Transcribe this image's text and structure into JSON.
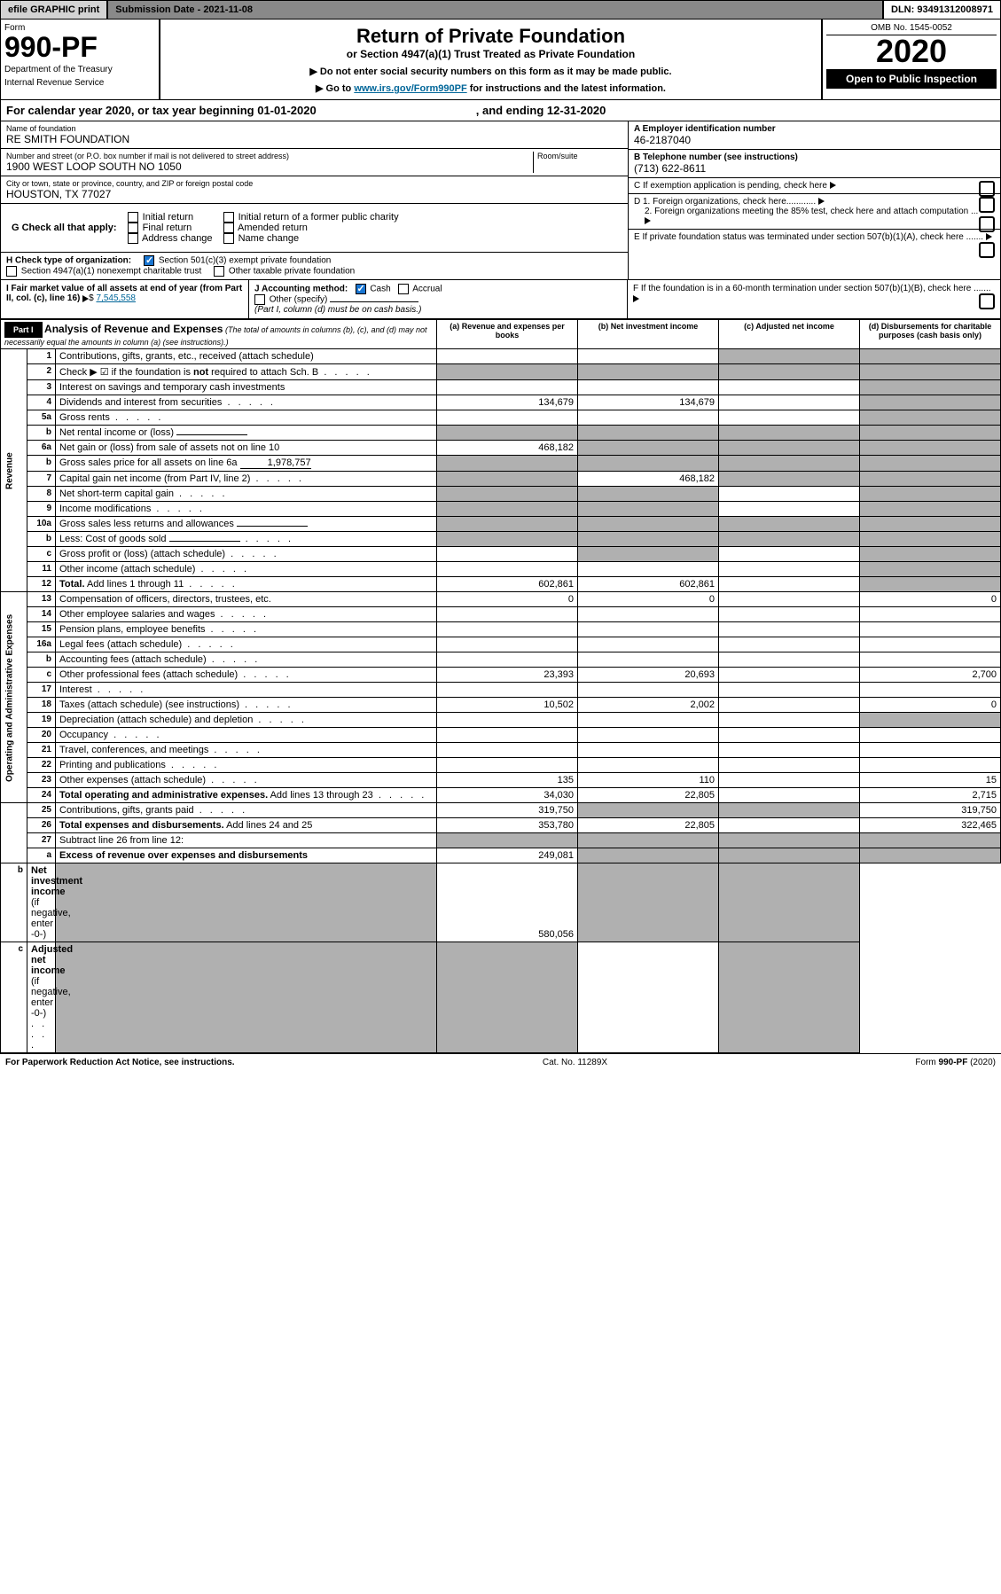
{
  "topbar": {
    "efile": "efile GRAPHIC print",
    "subdate_label": "Submission Date - 2021-11-08",
    "dln": "DLN: 93491312008971"
  },
  "header": {
    "form_label": "Form",
    "form_num": "990-PF",
    "dept1": "Department of the Treasury",
    "dept2": "Internal Revenue Service",
    "title": "Return of Private Foundation",
    "subtitle": "or Section 4947(a)(1) Trust Treated as Private Foundation",
    "notice1": "▶ Do not enter social security numbers on this form as it may be made public.",
    "notice2_pre": "▶ Go to ",
    "notice2_link": "www.irs.gov/Form990PF",
    "notice2_post": " for instructions and the latest information.",
    "omb": "OMB No. 1545-0052",
    "year": "2020",
    "inspect": "Open to Public Inspection"
  },
  "calendar": {
    "text": "For calendar year 2020, or tax year beginning 01-01-2020",
    "ending": ", and ending 12-31-2020"
  },
  "foundation": {
    "name_label": "Name of foundation",
    "name": "RE SMITH FOUNDATION",
    "addr_label": "Number and street (or P.O. box number if mail is not delivered to street address)",
    "addr": "1900 WEST LOOP SOUTH NO 1050",
    "room_label": "Room/suite",
    "city_label": "City or town, state or province, country, and ZIP or foreign postal code",
    "city": "HOUSTON, TX  77027",
    "ein_label": "A Employer identification number",
    "ein": "46-2187040",
    "phone_label": "B Telephone number (see instructions)",
    "phone": "(713) 622-8611",
    "c_label": "C If exemption application is pending, check here",
    "d1_label": "D 1. Foreign organizations, check here............",
    "d2_label": "2. Foreign organizations meeting the 85% test, check here and attach computation ...",
    "e_label": "E  If private foundation status was terminated under section 507(b)(1)(A), check here .......",
    "f_label": "F  If the foundation is in a 60-month termination under section 507(b)(1)(B), check here .......",
    "g_label": "G Check all that apply:",
    "g_opts": [
      "Initial return",
      "Final return",
      "Address change",
      "Initial return of a former public charity",
      "Amended return",
      "Name change"
    ],
    "h_label": "H Check type of organization:",
    "h1": "Section 501(c)(3) exempt private foundation",
    "h2": "Section 4947(a)(1) nonexempt charitable trust",
    "h3": "Other taxable private foundation",
    "i_label": "I Fair market value of all assets at end of year (from Part II, col. (c), line 16)",
    "i_amount": "7,545,558",
    "j_label": "J Accounting method:",
    "j_cash": "Cash",
    "j_accrual": "Accrual",
    "j_other": "Other (specify)",
    "j_note": "(Part I, column (d) must be on cash basis.)"
  },
  "part1": {
    "label": "Part I",
    "title": "Analysis of Revenue and Expenses",
    "subtitle": "(The total of amounts in columns (b), (c), and (d) may not necessarily equal the amounts in column (a) (see instructions).)",
    "col_a": "(a) Revenue and expenses per books",
    "col_b": "(b) Net investment income",
    "col_c": "(c) Adjusted net income",
    "col_d": "(d) Disbursements for charitable purposes (cash basis only)",
    "side_revenue": "Revenue",
    "side_expenses": "Operating and Administrative Expenses"
  },
  "rows": [
    {
      "n": "1",
      "desc": "Contributions, gifts, grants, etc., received (attach schedule)",
      "a": "",
      "b": "",
      "c": "grey",
      "d": "grey"
    },
    {
      "n": "2",
      "desc": "Check ▶ ☑ if the foundation is <b>not</b> required to attach Sch. B",
      "dots": true,
      "a": "grey",
      "b": "grey",
      "c": "grey",
      "d": "grey"
    },
    {
      "n": "3",
      "desc": "Interest on savings and temporary cash investments",
      "a": "",
      "b": "",
      "c": "",
      "d": "grey"
    },
    {
      "n": "4",
      "desc": "Dividends and interest from securities",
      "dots": true,
      "a": "134,679",
      "b": "134,679",
      "c": "",
      "d": "grey"
    },
    {
      "n": "5a",
      "desc": "Gross rents",
      "dots": true,
      "a": "",
      "b": "",
      "c": "",
      "d": "grey"
    },
    {
      "n": "b",
      "desc": "Net rental income or (loss)",
      "inline": "",
      "a": "grey",
      "b": "grey",
      "c": "grey",
      "d": "grey"
    },
    {
      "n": "6a",
      "desc": "Net gain or (loss) from sale of assets not on line 10",
      "a": "468,182",
      "b": "grey",
      "c": "grey",
      "d": "grey"
    },
    {
      "n": "b",
      "desc": "Gross sales price for all assets on line 6a",
      "inline": "1,978,757",
      "a": "grey",
      "b": "grey",
      "c": "grey",
      "d": "grey"
    },
    {
      "n": "7",
      "desc": "Capital gain net income (from Part IV, line 2)",
      "dots": true,
      "a": "grey",
      "b": "468,182",
      "c": "grey",
      "d": "grey"
    },
    {
      "n": "8",
      "desc": "Net short-term capital gain",
      "dots": true,
      "a": "grey",
      "b": "grey",
      "c": "",
      "d": "grey"
    },
    {
      "n": "9",
      "desc": "Income modifications",
      "dots": true,
      "a": "grey",
      "b": "grey",
      "c": "",
      "d": "grey"
    },
    {
      "n": "10a",
      "desc": "Gross sales less returns and allowances",
      "inline": "",
      "a": "grey",
      "b": "grey",
      "c": "grey",
      "d": "grey"
    },
    {
      "n": "b",
      "desc": "Less: Cost of goods sold",
      "dots": true,
      "inline": "",
      "a": "grey",
      "b": "grey",
      "c": "grey",
      "d": "grey"
    },
    {
      "n": "c",
      "desc": "Gross profit or (loss) (attach schedule)",
      "dots": true,
      "a": "",
      "b": "grey",
      "c": "",
      "d": "grey"
    },
    {
      "n": "11",
      "desc": "Other income (attach schedule)",
      "dots": true,
      "a": "",
      "b": "",
      "c": "",
      "d": "grey"
    },
    {
      "n": "12",
      "desc": "<b>Total.</b> Add lines 1 through 11",
      "dots": true,
      "a": "602,861",
      "b": "602,861",
      "c": "",
      "d": "grey"
    },
    {
      "n": "13",
      "desc": "Compensation of officers, directors, trustees, etc.",
      "a": "0",
      "b": "0",
      "c": "",
      "d": "0",
      "section": "exp"
    },
    {
      "n": "14",
      "desc": "Other employee salaries and wages",
      "dots": true,
      "a": "",
      "b": "",
      "c": "",
      "d": ""
    },
    {
      "n": "15",
      "desc": "Pension plans, employee benefits",
      "dots": true,
      "a": "",
      "b": "",
      "c": "",
      "d": ""
    },
    {
      "n": "16a",
      "desc": "Legal fees (attach schedule)",
      "dots": true,
      "a": "",
      "b": "",
      "c": "",
      "d": ""
    },
    {
      "n": "b",
      "desc": "Accounting fees (attach schedule)",
      "dots": true,
      "a": "",
      "b": "",
      "c": "",
      "d": ""
    },
    {
      "n": "c",
      "desc": "Other professional fees (attach schedule)",
      "dots": true,
      "a": "23,393",
      "b": "20,693",
      "c": "",
      "d": "2,700"
    },
    {
      "n": "17",
      "desc": "Interest",
      "dots": true,
      "a": "",
      "b": "",
      "c": "",
      "d": ""
    },
    {
      "n": "18",
      "desc": "Taxes (attach schedule) (see instructions)",
      "dots": true,
      "a": "10,502",
      "b": "2,002",
      "c": "",
      "d": "0"
    },
    {
      "n": "19",
      "desc": "Depreciation (attach schedule) and depletion",
      "dots": true,
      "a": "",
      "b": "",
      "c": "",
      "d": "grey"
    },
    {
      "n": "20",
      "desc": "Occupancy",
      "dots": true,
      "a": "",
      "b": "",
      "c": "",
      "d": ""
    },
    {
      "n": "21",
      "desc": "Travel, conferences, and meetings",
      "dots": true,
      "a": "",
      "b": "",
      "c": "",
      "d": ""
    },
    {
      "n": "22",
      "desc": "Printing and publications",
      "dots": true,
      "a": "",
      "b": "",
      "c": "",
      "d": ""
    },
    {
      "n": "23",
      "desc": "Other expenses (attach schedule)",
      "dots": true,
      "a": "135",
      "b": "110",
      "c": "",
      "d": "15"
    },
    {
      "n": "24",
      "desc": "<b>Total operating and administrative expenses.</b> Add lines 13 through 23",
      "dots": true,
      "a": "34,030",
      "b": "22,805",
      "c": "",
      "d": "2,715"
    },
    {
      "n": "25",
      "desc": "Contributions, gifts, grants paid",
      "dots": true,
      "a": "319,750",
      "b": "grey",
      "c": "grey",
      "d": "319,750"
    },
    {
      "n": "26",
      "desc": "<b>Total expenses and disbursements.</b> Add lines 24 and 25",
      "a": "353,780",
      "b": "22,805",
      "c": "",
      "d": "322,465"
    },
    {
      "n": "27",
      "desc": "Subtract line 26 from line 12:",
      "a": "grey",
      "b": "grey",
      "c": "grey",
      "d": "grey",
      "section": "end"
    },
    {
      "n": "a",
      "desc": "<b>Excess of revenue over expenses and disbursements</b>",
      "a": "249,081",
      "b": "grey",
      "c": "grey",
      "d": "grey"
    },
    {
      "n": "b",
      "desc": "<b>Net investment income</b> (if negative, enter -0-)",
      "a": "grey",
      "b": "580,056",
      "c": "grey",
      "d": "grey"
    },
    {
      "n": "c",
      "desc": "<b>Adjusted net income</b> (if negative, enter -0-)",
      "dots": true,
      "a": "grey",
      "b": "grey",
      "c": "",
      "d": "grey"
    }
  ],
  "footer": {
    "left": "For Paperwork Reduction Act Notice, see instructions.",
    "mid": "Cat. No. 11289X",
    "right": "Form 990-PF (2020)"
  },
  "colors": {
    "grey_cell": "#b0b0b0",
    "link": "#006699"
  }
}
